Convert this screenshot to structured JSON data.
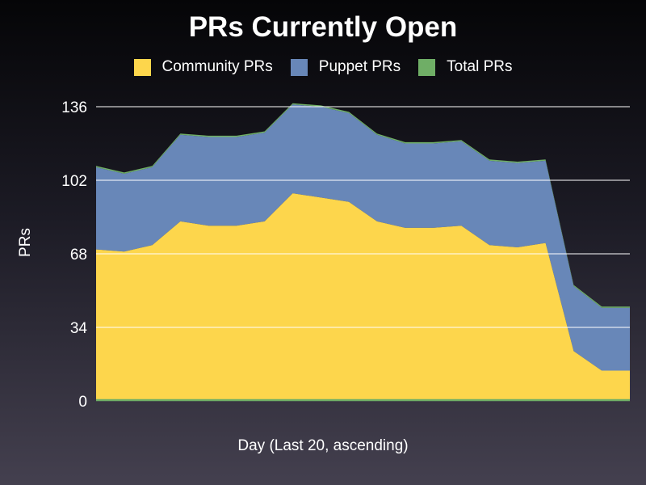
{
  "chart_data": {
    "type": "area",
    "stacked": true,
    "title": "PRs Currently Open",
    "xlabel": "Day (Last 20, ascending)",
    "ylabel": "PRs",
    "ylim": [
      0,
      136
    ],
    "yticks": [
      0,
      34,
      68,
      102,
      136
    ],
    "grid": true,
    "legend": "top",
    "x": [
      1,
      2,
      3,
      4,
      5,
      6,
      7,
      8,
      9,
      10,
      11,
      12,
      13,
      14,
      15,
      16,
      17,
      18,
      19,
      20
    ],
    "series": [
      {
        "name": "Community PRs",
        "color": "#fdd64c",
        "values": [
          70,
          69,
          72,
          83,
          81,
          81,
          83,
          96,
          94,
          92,
          83,
          80,
          80,
          81,
          72,
          71,
          73,
          23,
          14,
          14
        ]
      },
      {
        "name": "Puppet PRs",
        "color": "#6887b8",
        "values": [
          38,
          36,
          36,
          40,
          41,
          41,
          41,
          41,
          42,
          41,
          40,
          39,
          39,
          39,
          39,
          39,
          38,
          30,
          29,
          29
        ]
      },
      {
        "name": "Total PRs",
        "color": "#6fae66",
        "values": [
          0.6,
          0.6,
          0.6,
          0.6,
          0.6,
          0.6,
          0.6,
          0.6,
          0.6,
          0.6,
          0.6,
          0.6,
          0.6,
          0.6,
          0.6,
          0.6,
          0.6,
          0.6,
          0.6,
          0.6
        ]
      }
    ]
  }
}
